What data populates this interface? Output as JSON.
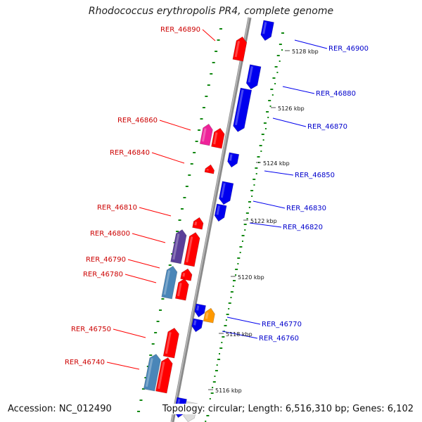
{
  "title": "Rhodococcus erythropolis PR4, complete genome",
  "footer": {
    "accession": "Accession: NC_012490",
    "topology": "Topology: circular; Length: 6,516,310 bp; Genes: 6,102"
  },
  "colors": {
    "forward": "#ff0000",
    "reverse": "#0000ee",
    "magenta": "#ee2299",
    "purple": "#5a3f99",
    "steel": "#4a86b8",
    "orange": "#ff9900",
    "grey": "#dddddd",
    "backbone": "#888888",
    "dots": "#118811"
  },
  "left_labels": [
    "RER_46890",
    "RER_46860",
    "RER_46840",
    "RER_46810",
    "RER_46800",
    "RER_46790",
    "RER_46780",
    "RER_46750",
    "RER_46740"
  ],
  "right_labels": [
    "RER_46900",
    "RER_46880",
    "RER_46870",
    "RER_46850",
    "RER_46830",
    "RER_46820",
    "RER_46770",
    "RER_46760"
  ],
  "ticks": [
    "5128 kbp",
    "5126 kbp",
    "5124 kbp",
    "5122 kbp",
    "5120 kbp",
    "5118 kbp",
    "5116 kbp"
  ]
}
